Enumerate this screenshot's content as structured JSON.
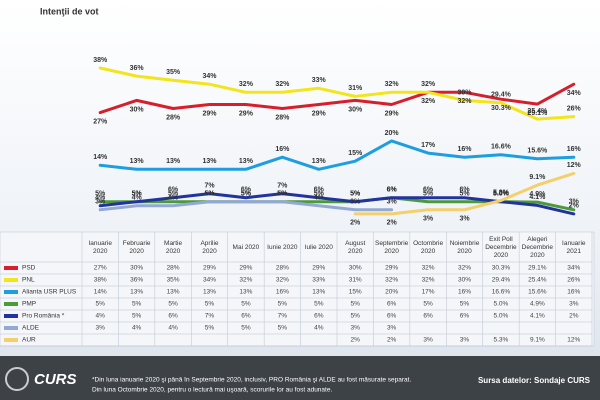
{
  "chart_data": {
    "type": "line",
    "title": "Intenţii de vot",
    "categories": [
      "Ianuarie 2020",
      "Februarie 2020",
      "Martie 2020",
      "Aprilie 2020",
      "Mai 2020",
      "Iunie 2020",
      "Iulie 2020",
      "August 2020",
      "Septembrie 2020",
      "Octombrie 2020",
      "Noiembrie 2020",
      "Exit Poll Decembrie 2020",
      "Alegeri Decembrie 2020",
      "Ianuarie 2021"
    ],
    "series": [
      {
        "name": "PSD",
        "color": "#d61f2c",
        "values": [
          27,
          30,
          28,
          29,
          29,
          28,
          29,
          30,
          29,
          32,
          32,
          30.3,
          29.1,
          34
        ],
        "value_labels": [
          "27%",
          "30%",
          "28%",
          "29%",
          "29%",
          "28%",
          "29%",
          "30%",
          "29%",
          "32%",
          "32%",
          "30.3%",
          "29.1%",
          "34%"
        ]
      },
      {
        "name": "PNL",
        "color": "#f2e51c",
        "values": [
          38,
          36,
          35,
          34,
          32,
          32,
          33,
          31,
          32,
          32,
          30,
          29.4,
          25.4,
          26
        ],
        "value_labels": [
          "38%",
          "36%",
          "35%",
          "34%",
          "32%",
          "32%",
          "33%",
          "31%",
          "32%",
          "32%",
          "30%",
          "29.4%",
          "25.4%",
          "26%"
        ]
      },
      {
        "name": "Alianta USR PLUS",
        "color": "#1e9ee0",
        "values": [
          14,
          13,
          13,
          13,
          13,
          16,
          13,
          15,
          20,
          17,
          16,
          16.6,
          15.6,
          16
        ],
        "value_labels": [
          "14%",
          "13%",
          "13%",
          "13%",
          "13%",
          "16%",
          "13%",
          "15%",
          "20%",
          "17%",
          "16%",
          "16.6%",
          "15.6%",
          "16%"
        ]
      },
      {
        "name": "PMP",
        "color": "#4c9a3c",
        "values": [
          5,
          5,
          5,
          5,
          5,
          5,
          5,
          5,
          6,
          5,
          5,
          5.0,
          4.9,
          3
        ],
        "value_labels": [
          "5%",
          "5%",
          "5%",
          "5%",
          "5%",
          "5%",
          "5%",
          "5%",
          "6%",
          "5%",
          "5%",
          "5.0%",
          "4.9%",
          "3%"
        ]
      },
      {
        "name": "Pro România *",
        "color": "#23339e",
        "values": [
          4,
          5,
          6,
          7,
          6,
          7,
          6,
          5,
          6,
          6,
          6,
          5.0,
          4.1,
          2
        ],
        "value_labels": [
          "4%",
          "5%",
          "6%",
          "7%",
          "6%",
          "7%",
          "6%",
          "5%",
          "6%",
          "6%",
          "6%",
          "5.0%",
          "4.1%",
          "2%"
        ]
      },
      {
        "name": "ALDE",
        "color": "#93a9d4",
        "values": [
          3,
          4,
          4,
          5,
          5,
          5,
          4,
          3,
          3,
          null,
          null,
          null,
          null,
          null
        ],
        "value_labels": [
          "3%",
          "4%",
          "4%",
          "5%",
          "5%",
          "5%",
          "4%",
          "3%",
          "3%",
          null,
          null,
          null,
          null,
          null
        ]
      },
      {
        "name": "AUR",
        "color": "#f3d06c",
        "values": [
          null,
          null,
          null,
          null,
          null,
          null,
          null,
          2,
          2,
          3,
          3,
          5.3,
          9.1,
          12
        ],
        "value_labels": [
          null,
          null,
          null,
          null,
          null,
          null,
          null,
          "2%",
          "2%",
          "3%",
          "3%",
          "5.3%",
          "9.1%",
          "12%"
        ]
      }
    ],
    "logo": "CURS",
    "footnote": [
      "*Din luna ianuarie 2020 şi până în Septembrie 2020, inclusiv, PRO România şi ALDE au fost măsurate separat.",
      "Din luna Octombrie 2020, pentru o lectură mai uşoară, scorurile lor au fost adunate."
    ],
    "source": "Sursa datelor: Sondaje CURS"
  }
}
